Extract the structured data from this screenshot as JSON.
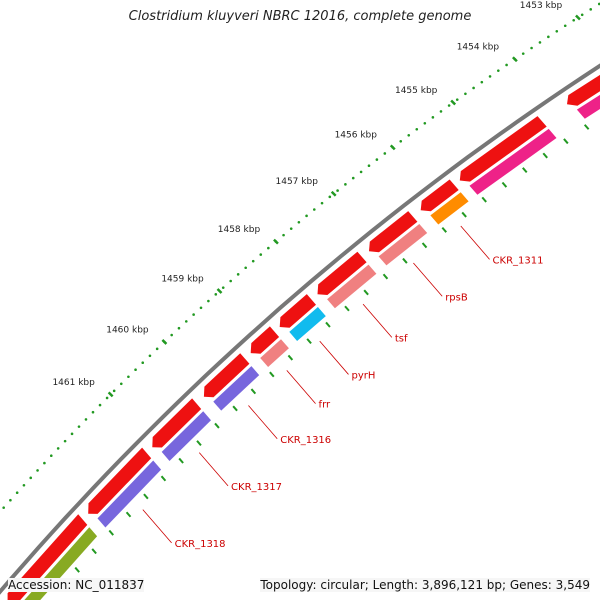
{
  "title": "Clostridium kluyveri NBRC 12016, complete genome",
  "footer": {
    "accession": "Accession: NC_011837",
    "summary": "Topology: circular; Length: 3,896,121 bp; Genes: 3,549"
  },
  "scale_marks": [
    {
      "label": "1453 kbp"
    },
    {
      "label": "1454 kbp"
    },
    {
      "label": "1455 kbp"
    },
    {
      "label": "1456 kbp"
    },
    {
      "label": "1457 kbp"
    },
    {
      "label": "1458 kbp"
    },
    {
      "label": "1459 kbp"
    },
    {
      "label": "1460 kbp"
    },
    {
      "label": "1461 kbp"
    }
  ],
  "gene_labels": [
    {
      "label": "CKR_1311"
    },
    {
      "label": "rpsB"
    },
    {
      "label": "tsf"
    },
    {
      "label": "pyrH"
    },
    {
      "label": "frr"
    },
    {
      "label": "CKR_1316"
    },
    {
      "label": "CKR_1317"
    },
    {
      "label": "CKR_1318"
    }
  ],
  "colors": {
    "backbone": "#777777",
    "gene_red": "#ee1111",
    "cog_magenta": "#ee2288",
    "cog_orange": "#ff8c00",
    "cog_salmon": "#f08080",
    "cog_cyan": "#11bbee",
    "cog_purple": "#7766dd",
    "cog_olive": "#88aa22",
    "cog_lime": "#bbee44",
    "tick_dots": "#229922",
    "label_text": "#cc0000"
  }
}
